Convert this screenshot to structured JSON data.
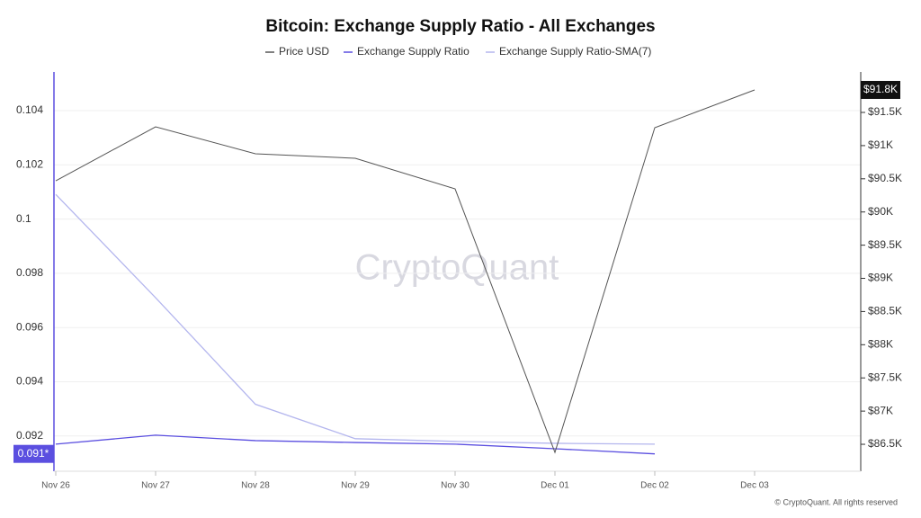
{
  "chart_data": {
    "type": "line",
    "title": "Bitcoin: Exchange Supply Ratio - All Exchanges",
    "watermark": "CryptoQuant",
    "footer": "© CryptoQuant. All rights reserved",
    "categories": [
      "Nov 26",
      "Nov 27",
      "Nov 28",
      "Nov 29",
      "Nov 30",
      "Dec 01",
      "Dec 02",
      "Dec 03"
    ],
    "series": [
      {
        "name": "Price USD",
        "color": "#555555",
        "axis": "y2",
        "values": [
          90470,
          91283,
          90877,
          90809,
          90348,
          86378,
          91270,
          91839
        ],
        "current_label": "$91.8K"
      },
      {
        "name": "Exchange Supply Ratio",
        "color": "#5b4fe0",
        "values": [
          0.0917,
          0.09203,
          0.09183,
          0.09176,
          0.0917,
          0.09153,
          0.09134,
          null
        ],
        "current_label": "0.091*"
      },
      {
        "name": "Exchange Supply Ratio-SMA(7)",
        "color": "#b4b6ee",
        "values": [
          0.10091,
          0.0971,
          0.09317,
          0.0919,
          0.0918,
          0.09173,
          0.0917,
          null
        ]
      }
    ],
    "ylim": [
      0.0907,
      0.10526
    ],
    "yticks": [
      0.092,
      0.094,
      0.096,
      0.098,
      0.1,
      0.102,
      0.104
    ],
    "y2lim": [
      86094,
      92042
    ],
    "y2ticks": [
      {
        "value": 86500,
        "label": "$86.5K"
      },
      {
        "value": 87000,
        "label": "$87K"
      },
      {
        "value": 87500,
        "label": "$87.5K"
      },
      {
        "value": 88000,
        "label": "$88K"
      },
      {
        "value": 88500,
        "label": "$88.5K"
      },
      {
        "value": 89000,
        "label": "$89K"
      },
      {
        "value": 89500,
        "label": "$89.5K"
      },
      {
        "value": 90000,
        "label": "$90K"
      },
      {
        "value": 90500,
        "label": "$90.5K"
      },
      {
        "value": 91000,
        "label": "$91K"
      },
      {
        "value": 91500,
        "label": "$91.5K"
      }
    ],
    "grid": true
  }
}
